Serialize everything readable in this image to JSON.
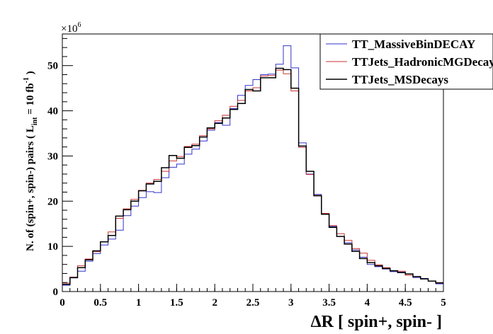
{
  "chart_data": {
    "type": "line",
    "xlabel": "ΔR [ spin+, spin- ]",
    "ylabel": "N. of (spin+, spin-) pairs ( L int = 10 fb-1 )",
    "ylabel_parts": {
      "main": "N. of (spin+, spin-) pairs ( L",
      "sub": "int",
      "mid": " = 10 fb",
      "sup": "-1",
      "end": " )"
    },
    "y_multiplier": "×10",
    "y_multiplier_exp": "6",
    "xlim": [
      0,
      5
    ],
    "ylim": [
      0,
      57
    ],
    "x_ticks": [
      0,
      0.5,
      1,
      1.5,
      2,
      2.5,
      3,
      3.5,
      4,
      4.5,
      5
    ],
    "x_tick_labels": [
      "0",
      "0.5",
      "1",
      "1.5",
      "2",
      "2.5",
      "3",
      "3.5",
      "4",
      "4.5",
      "5"
    ],
    "y_ticks": [
      0,
      10,
      20,
      30,
      40,
      50
    ],
    "y_tick_labels": [
      "0",
      "10",
      "20",
      "30",
      "40",
      "50"
    ],
    "bin_edges_start": 0,
    "bin_width": 0.1,
    "legend_position": "top-right",
    "series": [
      {
        "name": "TT_MassiveBinDECAY",
        "color": "#3333cc",
        "width": 1,
        "values": [
          1.4,
          3.0,
          4.5,
          6.7,
          8.4,
          10.3,
          11.6,
          13.6,
          16.8,
          18.9,
          20.8,
          22.1,
          21.9,
          25.2,
          27.5,
          28.2,
          30.4,
          31.5,
          33.3,
          35.7,
          37.4,
          36.8,
          40.5,
          43.4,
          45.6,
          46.9,
          48.0,
          48.1,
          50.3,
          54.4,
          49.5,
          32.9,
          26.0,
          21.5,
          17.3,
          14.4,
          12.2,
          10.8,
          9.2,
          7.6,
          6.0,
          5.5,
          5.0,
          4.4,
          4.3,
          3.6,
          3.1,
          2.9,
          2.3,
          1.7
        ]
      },
      {
        "name": "TTJets_HadronicMGDecays",
        "color": "#cc3333",
        "width": 1,
        "values": [
          1.9,
          3.2,
          5.7,
          7.2,
          8.8,
          11.0,
          13.2,
          16.2,
          18.3,
          20.4,
          22.4,
          24.0,
          24.8,
          26.6,
          28.9,
          29.9,
          32.1,
          32.6,
          34.5,
          36.0,
          37.8,
          39.0,
          41.0,
          42.3,
          44.4,
          45.1,
          47.7,
          47.8,
          49.0,
          48.2,
          44.4,
          31.9,
          25.9,
          21.3,
          17.3,
          14.6,
          12.8,
          11.3,
          9.5,
          8.5,
          6.9,
          5.9,
          5.3,
          4.6,
          4.5,
          3.6,
          3.3,
          2.8,
          2.3,
          2.0
        ]
      },
      {
        "name": "TTJets_MSDecays",
        "color": "#000000",
        "width": 1.5,
        "values": [
          1.6,
          3.1,
          5.3,
          7.0,
          9.0,
          11.0,
          12.4,
          16.7,
          18.1,
          20.0,
          22.3,
          23.8,
          24.4,
          27.4,
          30.1,
          29.5,
          31.9,
          32.3,
          34.2,
          36.2,
          37.2,
          38.4,
          40.3,
          41.6,
          44.7,
          44.4,
          47.3,
          47.3,
          49.4,
          49.1,
          45.0,
          32.2,
          26.6,
          21.2,
          17.1,
          14.2,
          12.2,
          10.5,
          8.9,
          7.3,
          6.4,
          5.7,
          5.1,
          4.6,
          4.2,
          3.9,
          3.3,
          2.8,
          2.3,
          1.9
        ]
      }
    ]
  }
}
